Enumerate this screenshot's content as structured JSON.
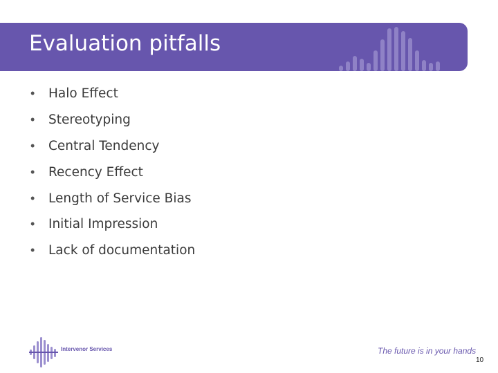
{
  "slide": {
    "title": "Evaluation pitfalls",
    "bullet_glyph": "•",
    "bullets": [
      "Halo Effect",
      "Stereotyping",
      "Central Tendency",
      "Recency Effect",
      "Length of Service Bias",
      "Initial Impression",
      "Lack of documentation"
    ]
  },
  "footer": {
    "logo_text": "Intervenor Services",
    "tagline": "The future is in your hands",
    "page_number": "10"
  },
  "colors": {
    "banner": "#6756ad",
    "banner_bars": "#8f82c6",
    "logo_bars": "#9b8fcf"
  },
  "icons": {
    "banner_graphic": "sound-wave-bars-icon",
    "logo_graphic": "sound-wave-bars-icon"
  }
}
